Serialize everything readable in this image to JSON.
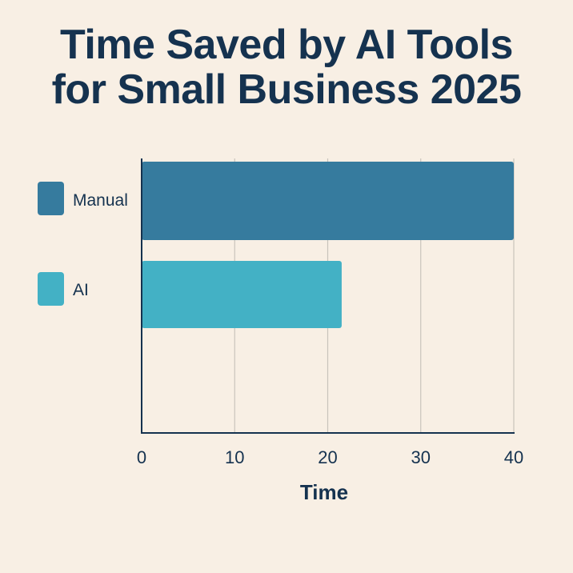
{
  "chart_data": {
    "type": "bar",
    "orientation": "horizontal",
    "title_lines": [
      "Time Saved by AI Tools",
      "for Small Business 2025"
    ],
    "categories": [
      "Manual",
      "AI"
    ],
    "values": [
      40,
      21.5
    ],
    "xlabel": "Time",
    "ylabel": "",
    "xlim": [
      0,
      40
    ],
    "xticks": [
      "0",
      "10",
      "20",
      "30",
      "40"
    ],
    "grid": "vertical",
    "legend_position": "left",
    "colors": [
      "#367b9e",
      "#43b1c5"
    ]
  },
  "colors": {
    "background": "#f8efe4",
    "text": "#15324f",
    "grid": "#c9c4bb"
  }
}
